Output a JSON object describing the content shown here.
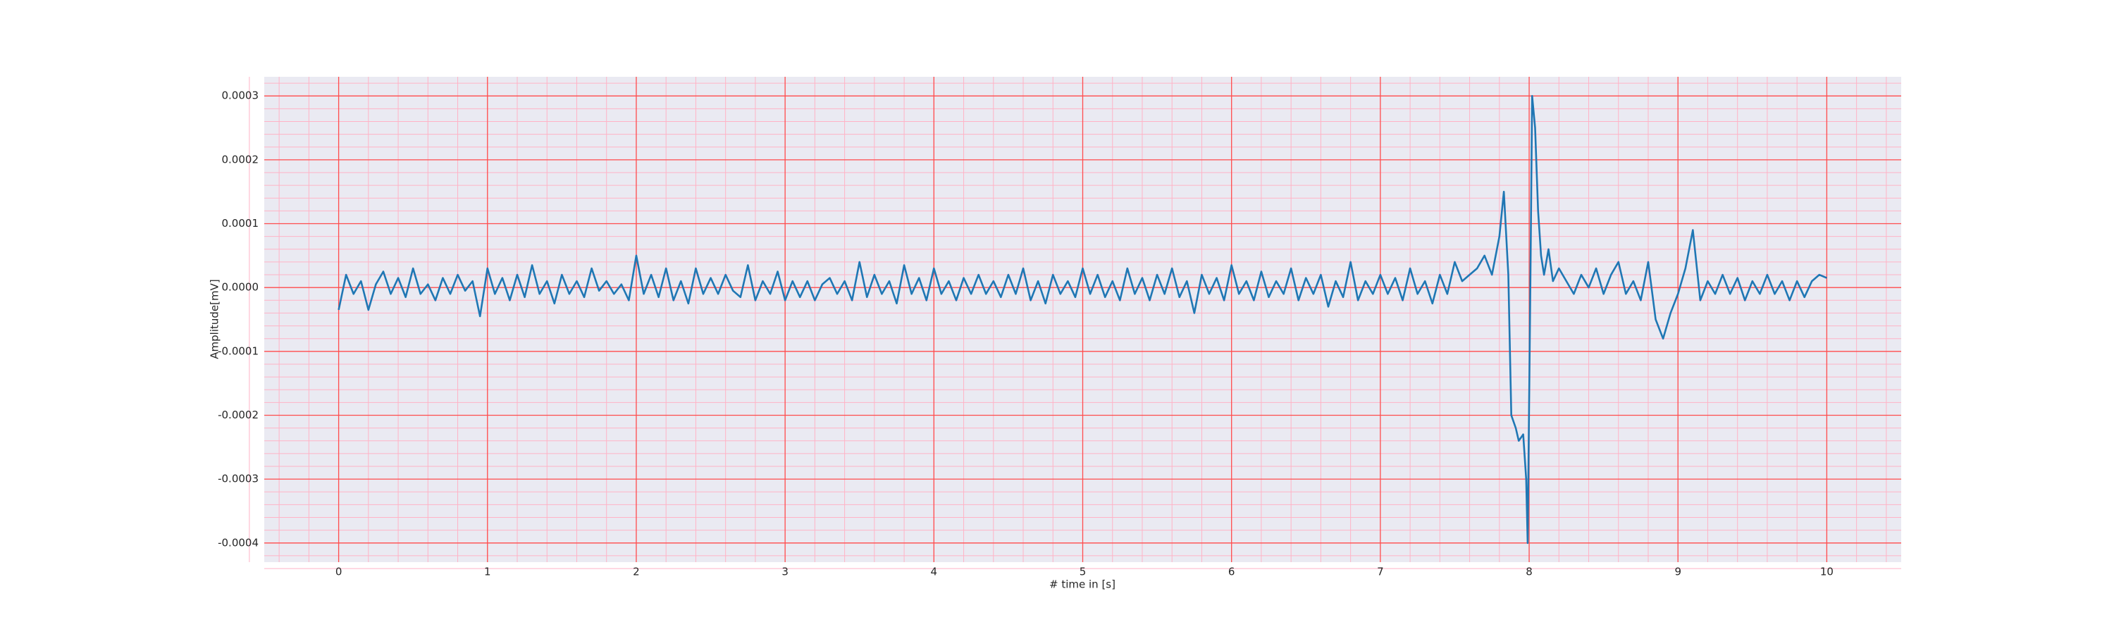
{
  "chart_data": {
    "type": "line",
    "xlabel": "# time in [s]",
    "ylabel": "Amplitude[mV]",
    "xlim": [
      -0.5,
      10.5
    ],
    "ylim": [
      -0.00043,
      0.00033
    ],
    "xticks": [
      0,
      1,
      2,
      3,
      4,
      5,
      6,
      7,
      8,
      9,
      10
    ],
    "yticks": [
      {
        "value": -0.0004,
        "label": "-0.0004"
      },
      {
        "value": -0.0003,
        "label": "-0.0003"
      },
      {
        "value": -0.0002,
        "label": "-0.0002"
      },
      {
        "value": -0.0001,
        "label": "-0.0001"
      },
      {
        "value": 0,
        "label": "0.0000"
      },
      {
        "value": 0.0001,
        "label": "0.0001"
      },
      {
        "value": 0.0002,
        "label": "0.0002"
      },
      {
        "value": 0.0003,
        "label": "0.0003"
      }
    ],
    "grid": true,
    "minor_grid": true,
    "color": "#1f77b4",
    "grid_color": "#ff4d4d",
    "minor_grid_color": "#ffb3c6",
    "background": "#eaeaf2",
    "x": [
      0,
      0.05,
      0.1,
      0.15,
      0.2,
      0.25,
      0.3,
      0.35,
      0.4,
      0.45,
      0.5,
      0.55,
      0.6,
      0.65,
      0.7,
      0.75,
      0.8,
      0.85,
      0.9,
      0.95,
      1,
      1.05,
      1.1,
      1.15,
      1.2,
      1.25,
      1.3,
      1.35,
      1.4,
      1.45,
      1.5,
      1.55,
      1.6,
      1.65,
      1.7,
      1.75,
      1.8,
      1.85,
      1.9,
      1.95,
      2,
      2.05,
      2.1,
      2.15,
      2.2,
      2.25,
      2.3,
      2.35,
      2.4,
      2.45,
      2.5,
      2.55,
      2.6,
      2.65,
      2.7,
      2.75,
      2.8,
      2.85,
      2.9,
      2.95,
      3,
      3.05,
      3.1,
      3.15,
      3.2,
      3.25,
      3.3,
      3.35,
      3.4,
      3.45,
      3.5,
      3.55,
      3.6,
      3.65,
      3.7,
      3.75,
      3.8,
      3.85,
      3.9,
      3.95,
      4,
      4.05,
      4.1,
      4.15,
      4.2,
      4.25,
      4.3,
      4.35,
      4.4,
      4.45,
      4.5,
      4.55,
      4.6,
      4.65,
      4.7,
      4.75,
      4.8,
      4.85,
      4.9,
      4.95,
      5,
      5.05,
      5.1,
      5.15,
      5.2,
      5.25,
      5.3,
      5.35,
      5.4,
      5.45,
      5.5,
      5.55,
      5.6,
      5.65,
      5.7,
      5.75,
      5.8,
      5.85,
      5.9,
      5.95,
      6,
      6.05,
      6.1,
      6.15,
      6.2,
      6.25,
      6.3,
      6.35,
      6.4,
      6.45,
      6.5,
      6.55,
      6.6,
      6.65,
      6.7,
      6.75,
      6.8,
      6.85,
      6.9,
      6.95,
      7,
      7.05,
      7.1,
      7.15,
      7.2,
      7.25,
      7.3,
      7.35,
      7.4,
      7.45,
      7.5,
      7.55,
      7.6,
      7.65,
      7.7,
      7.75,
      7.8,
      7.83,
      7.86,
      7.88,
      7.91,
      7.93,
      7.96,
      7.98,
      7.99,
      8.01,
      8.02,
      8.04,
      8.06,
      8.08,
      8.1,
      8.13,
      8.16,
      8.2,
      8.25,
      8.3,
      8.35,
      8.4,
      8.45,
      8.5,
      8.55,
      8.6,
      8.65,
      8.7,
      8.75,
      8.8,
      8.85,
      8.9,
      8.95,
      9,
      9.05,
      9.1,
      9.15,
      9.2,
      9.25,
      9.3,
      9.35,
      9.4,
      9.45,
      9.5,
      9.55,
      9.6,
      9.65,
      9.7,
      9.75,
      9.8,
      9.85,
      9.9,
      9.95,
      10
    ],
    "y": [
      -3.5e-05,
      2e-05,
      -1e-05,
      1e-05,
      -3.5e-05,
      5e-06,
      2.5e-05,
      -1e-05,
      1.5e-05,
      -1.5e-05,
      3e-05,
      -1e-05,
      5e-06,
      -2e-05,
      1.5e-05,
      -1e-05,
      2e-05,
      -5e-06,
      1e-05,
      -4.5e-05,
      3e-05,
      -1e-05,
      1.5e-05,
      -2e-05,
      2e-05,
      -1.5e-05,
      3.5e-05,
      -1e-05,
      1e-05,
      -2.5e-05,
      2e-05,
      -1e-05,
      1e-05,
      -1.5e-05,
      3e-05,
      -5e-06,
      1e-05,
      -1e-05,
      5e-06,
      -2e-05,
      5e-05,
      -1e-05,
      2e-05,
      -1.5e-05,
      3e-05,
      -2e-05,
      1e-05,
      -2.5e-05,
      3e-05,
      -1e-05,
      1.5e-05,
      -1e-05,
      2e-05,
      -5e-06,
      -1.5e-05,
      3.5e-05,
      -2e-05,
      1e-05,
      -1e-05,
      2.5e-05,
      -2e-05,
      1e-05,
      -1.5e-05,
      1e-05,
      -2e-05,
      5e-06,
      1.5e-05,
      -1e-05,
      1e-05,
      -2e-05,
      4e-05,
      -1.5e-05,
      2e-05,
      -1e-05,
      1e-05,
      -2.5e-05,
      3.5e-05,
      -1e-05,
      1.5e-05,
      -2e-05,
      3e-05,
      -1e-05,
      1e-05,
      -2e-05,
      1.5e-05,
      -1e-05,
      2e-05,
      -1e-05,
      1e-05,
      -1.5e-05,
      2e-05,
      -1e-05,
      3e-05,
      -2e-05,
      1e-05,
      -2.5e-05,
      2e-05,
      -1e-05,
      1e-05,
      -1.5e-05,
      3e-05,
      -1e-05,
      2e-05,
      -1.5e-05,
      1e-05,
      -2e-05,
      3e-05,
      -1e-05,
      1.5e-05,
      -2e-05,
      2e-05,
      -1e-05,
      3e-05,
      -1.5e-05,
      1e-05,
      -4e-05,
      2e-05,
      -1e-05,
      1.5e-05,
      -2e-05,
      3.5e-05,
      -1e-05,
      1e-05,
      -2e-05,
      2.5e-05,
      -1.5e-05,
      1e-05,
      -1e-05,
      3e-05,
      -2e-05,
      1.5e-05,
      -1e-05,
      2e-05,
      -3e-05,
      1e-05,
      -1.5e-05,
      4e-05,
      -2e-05,
      1e-05,
      -1e-05,
      2e-05,
      -1e-05,
      1.5e-05,
      -2e-05,
      3e-05,
      -1e-05,
      1e-05,
      -2.5e-05,
      2e-05,
      -1e-05,
      4e-05,
      1e-05,
      2e-05,
      3e-05,
      5e-05,
      2e-05,
      8e-05,
      0.00015,
      2e-05,
      -0.0002,
      -0.00022,
      -0.00024,
      -0.00023,
      -0.0003,
      -0.0004,
      5e-05,
      0.0003,
      0.00025,
      0.00012,
      5e-05,
      2e-05,
      6e-05,
      1e-05,
      3e-05,
      1e-05,
      -1e-05,
      2e-05,
      0,
      3e-05,
      -1e-05,
      2e-05,
      4e-05,
      -1e-05,
      1e-05,
      -2e-05,
      4e-05,
      -5e-05,
      -8e-05,
      -4e-05,
      -1e-05,
      3e-05,
      9e-05,
      -2e-05,
      1e-05,
      -1e-05,
      2e-05,
      -1e-05,
      1.5e-05,
      -2e-05,
      1e-05,
      -1e-05,
      2e-05,
      -1e-05,
      1e-05,
      -2e-05,
      1e-05,
      -1.5e-05,
      1e-05,
      2e-05,
      1.5e-05
    ]
  }
}
